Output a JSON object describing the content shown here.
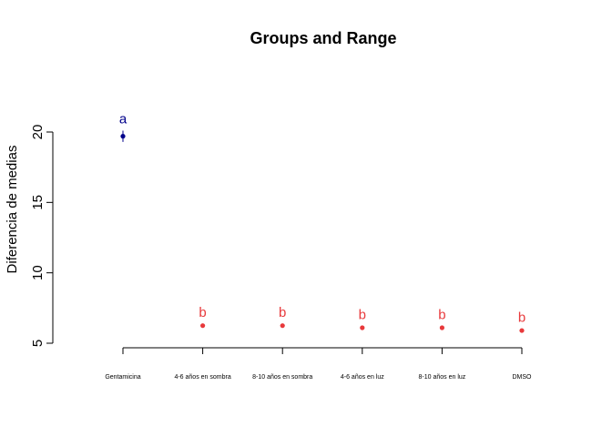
{
  "chart_data": {
    "type": "scatter",
    "title": "Groups and Range",
    "ylabel": "Diferencia de medias",
    "xlabel": "",
    "ylim": [
      5,
      20
    ],
    "yticks": [
      5,
      10,
      15,
      20
    ],
    "grid": false,
    "legend": "none",
    "categories": [
      "Gentamicina",
      "4-6 años en sombra",
      "8-10 años en sombra",
      "4-6 años en luz",
      "8-10 años en luz",
      "DMSO"
    ],
    "points": [
      {
        "category": "Gentamicina",
        "value": 19.7,
        "low": 19.3,
        "high": 20.1,
        "group": "a",
        "color": "#00008B"
      },
      {
        "category": "4-6 años en sombra",
        "value": 6.25,
        "low": 6.15,
        "high": 6.35,
        "group": "b",
        "color": "#E8393B"
      },
      {
        "category": "8-10 años en sombra",
        "value": 6.25,
        "low": 6.15,
        "high": 6.35,
        "group": "b",
        "color": "#E8393B"
      },
      {
        "category": "4-6 años en luz",
        "value": 6.1,
        "low": 6.0,
        "high": 6.2,
        "group": "b",
        "color": "#E8393B"
      },
      {
        "category": "8-10 años en luz",
        "value": 6.1,
        "low": 6.0,
        "high": 6.2,
        "group": "b",
        "color": "#E8393B"
      },
      {
        "category": "DMSO",
        "value": 5.9,
        "low": 5.8,
        "high": 6.0,
        "group": "b",
        "color": "#E8393B"
      }
    ]
  }
}
